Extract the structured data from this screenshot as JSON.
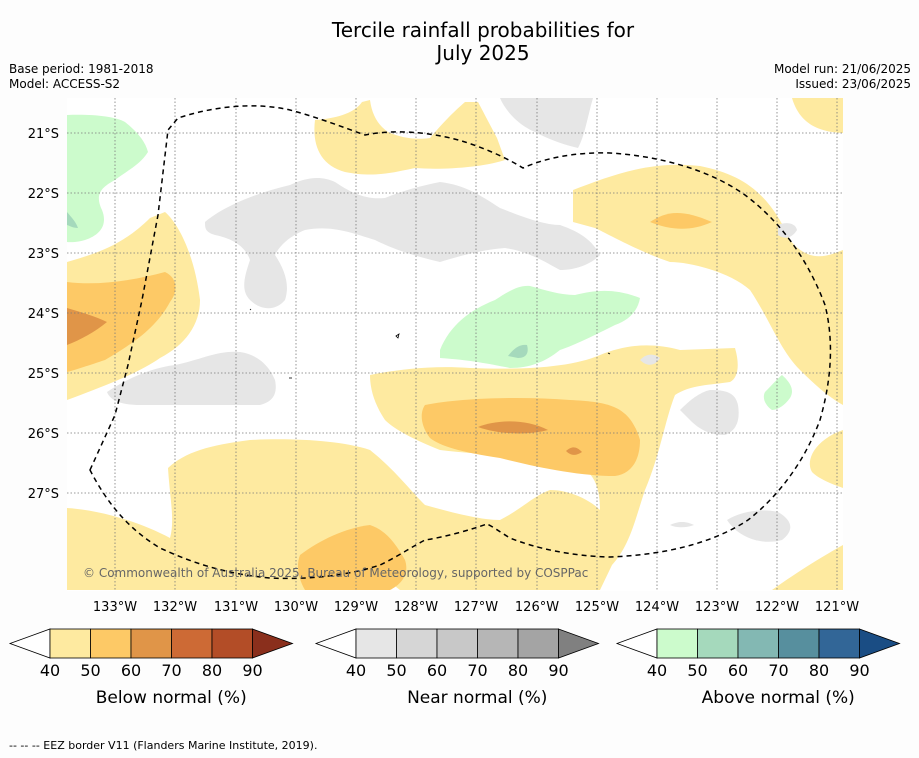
{
  "title_line1": "Tercile rainfall probabilities for",
  "title_line2": "July 2025",
  "base_period": "Base period: 1981-2018",
  "model": "Model: ACCESS-S2",
  "model_run": "Model run: 21/06/2025",
  "issued": "Issued: 23/06/2025",
  "copyright": "© Commonwealth of Australia 2025, Bureau of Meteorology, supported by COSPPac",
  "footer": "--  --  -- EEZ border V11 (Flanders Marine Institute, 2019).",
  "map": {
    "lat_labels": [
      "21°S",
      "22°S",
      "23°S",
      "24°S",
      "25°S",
      "26°S",
      "27°S"
    ],
    "lon_labels": [
      "133°W",
      "132°W",
      "131°W",
      "130°W",
      "129°W",
      "128°W",
      "127°W",
      "126°W",
      "125°W",
      "124°W",
      "123°W",
      "122°W",
      "121°W"
    ]
  },
  "colorbars": [
    {
      "label": "Below normal (%)",
      "ticks": [
        "40",
        "50",
        "60",
        "70",
        "80",
        "90"
      ],
      "colors": [
        "#feeaa0",
        "#fdc966",
        "#e09548",
        "#cd6a35",
        "#b34d27",
        "#8a2f1c"
      ]
    },
    {
      "label": "Near normal (%)",
      "ticks": [
        "40",
        "50",
        "60",
        "70",
        "80",
        "90"
      ],
      "colors": [
        "#e6e6e6",
        "#d6d6d6",
        "#c8c8c8",
        "#b6b6b6",
        "#a4a4a4",
        "#808080"
      ]
    },
    {
      "label": "Above normal (%)",
      "ticks": [
        "40",
        "50",
        "60",
        "70",
        "80",
        "90"
      ],
      "colors": [
        "#ccfbcc",
        "#a5d9bc",
        "#83b8b3",
        "#578f9e",
        "#326697",
        "#1a4d84"
      ]
    }
  ]
}
